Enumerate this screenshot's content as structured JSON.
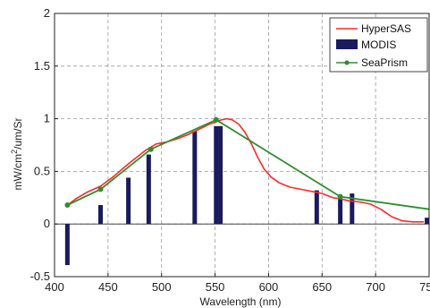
{
  "chart_data": {
    "type": "line",
    "xlabel": "Wavelength (nm)",
    "ylabel_main": "mW/cm",
    "ylabel_sup": "2",
    "ylabel_rest": "/um/Sr",
    "xlim": [
      400,
      750
    ],
    "ylim": [
      -0.5,
      2
    ],
    "xticks": [
      400,
      450,
      500,
      550,
      600,
      650,
      700,
      750
    ],
    "xtick_labels": [
      "400",
      "450",
      "500",
      "550",
      "600",
      "650",
      "700",
      "750"
    ],
    "yticks": [
      -0.5,
      0,
      0.5,
      1,
      1.5,
      2
    ],
    "ytick_labels": [
      "-0.5",
      "0",
      "0.5",
      "1",
      "1.5",
      "2"
    ],
    "grid": true,
    "legend_position": "top-right",
    "series": [
      {
        "name": "HyperSAS",
        "type": "line",
        "color": "#ff2a2a",
        "x": [
          412,
          420,
          430,
          443,
          455,
          470,
          485,
          495,
          505,
          515,
          525,
          535,
          545,
          551,
          556,
          561,
          566,
          572,
          578,
          584,
          590,
          596,
          602,
          610,
          620,
          630,
          640,
          650,
          660,
          667,
          675,
          685,
          695,
          705,
          715,
          725,
          735,
          745
        ],
        "y": [
          0.18,
          0.24,
          0.3,
          0.36,
          0.45,
          0.58,
          0.7,
          0.76,
          0.78,
          0.81,
          0.85,
          0.9,
          0.95,
          0.97,
          0.99,
          1.0,
          0.99,
          0.95,
          0.87,
          0.76,
          0.63,
          0.52,
          0.45,
          0.39,
          0.35,
          0.33,
          0.31,
          0.29,
          0.25,
          0.24,
          0.22,
          0.21,
          0.19,
          0.14,
          0.07,
          0.03,
          0.02,
          0.02
        ]
      },
      {
        "name": "MODIS",
        "type": "bar",
        "color": "#1a1a5e",
        "x": [
          412,
          443,
          469,
          488,
          531,
          551,
          555,
          645,
          667,
          678,
          748
        ],
        "values": [
          -0.39,
          0.18,
          0.44,
          0.66,
          0.88,
          0.93,
          0.93,
          0.32,
          0.27,
          0.29,
          0.06
        ]
      },
      {
        "name": "SeaPrism",
        "type": "line",
        "color": "#2f8f2f",
        "marker": "circle",
        "x": [
          412,
          443,
          490,
          551,
          667,
          750
        ],
        "y": [
          0.18,
          0.33,
          0.71,
          0.99,
          0.26,
          0.14
        ],
        "marker_x": [
          412,
          443,
          490,
          551,
          667
        ],
        "marker_y": [
          0.18,
          0.33,
          0.71,
          0.99,
          0.26
        ]
      }
    ]
  }
}
